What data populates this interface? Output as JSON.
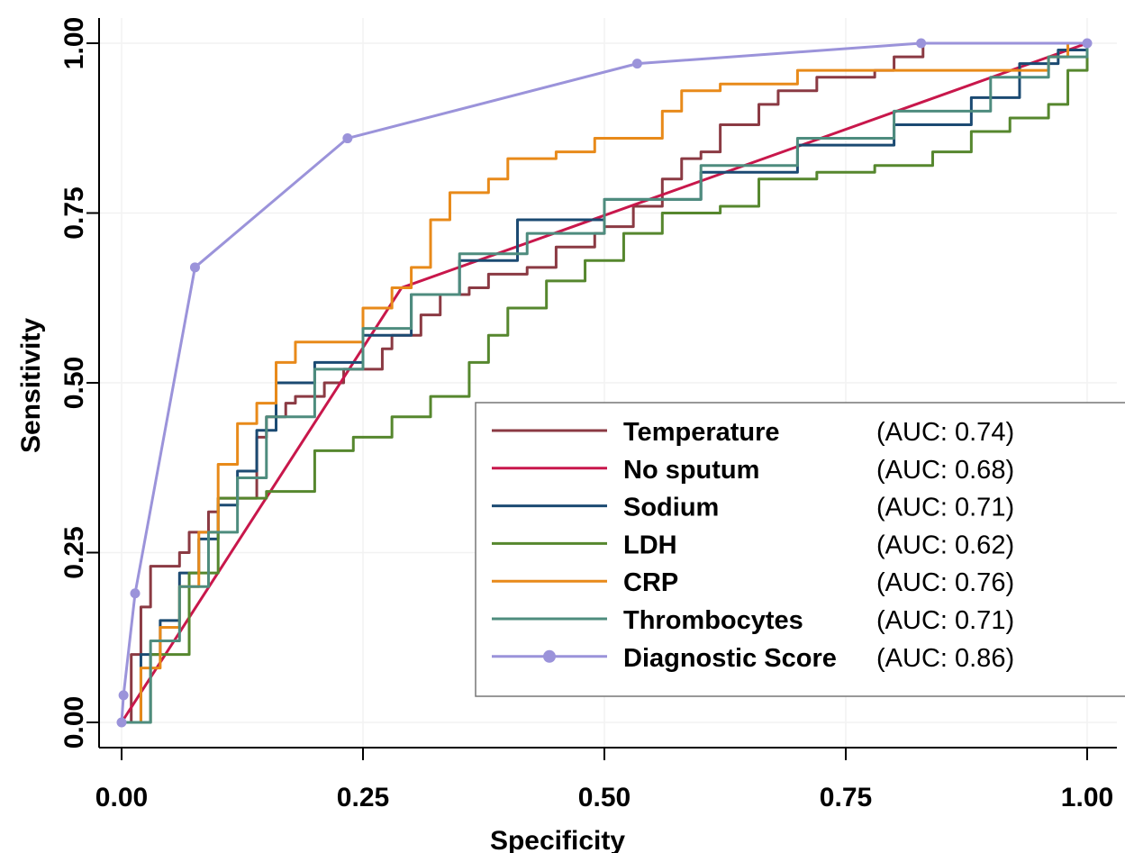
{
  "chart_data": {
    "type": "line",
    "xlabel": "Specificity",
    "ylabel": "Sensitivity",
    "xlim": [
      0,
      1
    ],
    "ylim": [
      0,
      1
    ],
    "x_ticks": [
      "0.00",
      "0.25",
      "0.50",
      "0.75",
      "1.00"
    ],
    "y_ticks": [
      "0.00",
      "0.25",
      "0.50",
      "0.75",
      "1.00"
    ],
    "x_tick_values": [
      0,
      0.25,
      0.5,
      0.75,
      1
    ],
    "y_tick_values": [
      0,
      0.25,
      0.5,
      0.75,
      1
    ],
    "grid": true,
    "legend_position": "bottom-right",
    "series": [
      {
        "name": "Temperature",
        "auc": "(AUC: 0.74)",
        "color": "#8b3a43",
        "markers": false,
        "points": [
          [
            0,
            0
          ],
          [
            0.01,
            0.1
          ],
          [
            0.02,
            0.17
          ],
          [
            0.03,
            0.23
          ],
          [
            0.05,
            0.23
          ],
          [
            0.06,
            0.25
          ],
          [
            0.07,
            0.28
          ],
          [
            0.09,
            0.31
          ],
          [
            0.1,
            0.33
          ],
          [
            0.12,
            0.33
          ],
          [
            0.14,
            0.42
          ],
          [
            0.15,
            0.45
          ],
          [
            0.17,
            0.47
          ],
          [
            0.18,
            0.48
          ],
          [
            0.2,
            0.48
          ],
          [
            0.21,
            0.5
          ],
          [
            0.23,
            0.52
          ],
          [
            0.25,
            0.52
          ],
          [
            0.27,
            0.55
          ],
          [
            0.28,
            0.57
          ],
          [
            0.31,
            0.6
          ],
          [
            0.33,
            0.63
          ],
          [
            0.36,
            0.64
          ],
          [
            0.38,
            0.66
          ],
          [
            0.4,
            0.66
          ],
          [
            0.42,
            0.67
          ],
          [
            0.45,
            0.7
          ],
          [
            0.49,
            0.72
          ],
          [
            0.5,
            0.73
          ],
          [
            0.53,
            0.76
          ],
          [
            0.56,
            0.8
          ],
          [
            0.58,
            0.83
          ],
          [
            0.6,
            0.84
          ],
          [
            0.62,
            0.88
          ],
          [
            0.64,
            0.88
          ],
          [
            0.66,
            0.91
          ],
          [
            0.68,
            0.93
          ],
          [
            0.72,
            0.95
          ],
          [
            0.75,
            0.95
          ],
          [
            0.78,
            0.96
          ],
          [
            0.8,
            0.98
          ],
          [
            0.83,
            0.98
          ],
          [
            0.83,
            1.0
          ]
        ]
      },
      {
        "name": "No sputum",
        "auc": "(AUC: 0.68)",
        "color": "#c8174b",
        "markers": false,
        "points": [
          [
            0,
            0
          ],
          [
            0.29,
            0.64
          ],
          [
            1.0,
            1.0
          ]
        ]
      },
      {
        "name": "Sodium",
        "auc": "(AUC: 0.71)",
        "color": "#1b4a72",
        "markers": false,
        "points": [
          [
            0,
            0
          ],
          [
            0.02,
            0.1
          ],
          [
            0.04,
            0.15
          ],
          [
            0.06,
            0.22
          ],
          [
            0.08,
            0.27
          ],
          [
            0.1,
            0.32
          ],
          [
            0.12,
            0.37
          ],
          [
            0.14,
            0.43
          ],
          [
            0.16,
            0.5
          ],
          [
            0.2,
            0.53
          ],
          [
            0.25,
            0.57
          ],
          [
            0.3,
            0.63
          ],
          [
            0.35,
            0.68
          ],
          [
            0.41,
            0.74
          ],
          [
            0.5,
            0.77
          ],
          [
            0.6,
            0.81
          ],
          [
            0.7,
            0.85
          ],
          [
            0.8,
            0.88
          ],
          [
            0.88,
            0.92
          ],
          [
            0.93,
            0.97
          ],
          [
            0.97,
            0.99
          ],
          [
            1.0,
            1.0
          ]
        ]
      },
      {
        "name": "LDH",
        "auc": "(AUC: 0.62)",
        "color": "#56872e",
        "markers": false,
        "points": [
          [
            0,
            0
          ],
          [
            0.03,
            0.1
          ],
          [
            0.07,
            0.22
          ],
          [
            0.1,
            0.33
          ],
          [
            0.15,
            0.34
          ],
          [
            0.2,
            0.4
          ],
          [
            0.24,
            0.42
          ],
          [
            0.28,
            0.45
          ],
          [
            0.32,
            0.48
          ],
          [
            0.36,
            0.53
          ],
          [
            0.38,
            0.57
          ],
          [
            0.4,
            0.61
          ],
          [
            0.44,
            0.65
          ],
          [
            0.48,
            0.68
          ],
          [
            0.52,
            0.72
          ],
          [
            0.56,
            0.75
          ],
          [
            0.62,
            0.76
          ],
          [
            0.66,
            0.8
          ],
          [
            0.72,
            0.81
          ],
          [
            0.78,
            0.82
          ],
          [
            0.84,
            0.84
          ],
          [
            0.88,
            0.87
          ],
          [
            0.92,
            0.89
          ],
          [
            0.96,
            0.91
          ],
          [
            0.98,
            0.96
          ],
          [
            1.0,
            1.0
          ]
        ]
      },
      {
        "name": "CRP",
        "auc": "(AUC: 0.76)",
        "color": "#e88a1a",
        "markers": false,
        "points": [
          [
            0,
            0
          ],
          [
            0.02,
            0.08
          ],
          [
            0.04,
            0.14
          ],
          [
            0.06,
            0.2
          ],
          [
            0.08,
            0.28
          ],
          [
            0.1,
            0.38
          ],
          [
            0.12,
            0.44
          ],
          [
            0.14,
            0.47
          ],
          [
            0.16,
            0.53
          ],
          [
            0.18,
            0.56
          ],
          [
            0.21,
            0.56
          ],
          [
            0.25,
            0.61
          ],
          [
            0.28,
            0.64
          ],
          [
            0.3,
            0.67
          ],
          [
            0.32,
            0.74
          ],
          [
            0.34,
            0.78
          ],
          [
            0.38,
            0.8
          ],
          [
            0.4,
            0.83
          ],
          [
            0.45,
            0.84
          ],
          [
            0.49,
            0.86
          ],
          [
            0.53,
            0.86
          ],
          [
            0.56,
            0.9
          ],
          [
            0.58,
            0.93
          ],
          [
            0.62,
            0.94
          ],
          [
            0.66,
            0.94
          ],
          [
            0.7,
            0.96
          ],
          [
            0.75,
            0.96
          ],
          [
            0.8,
            0.96
          ],
          [
            0.9,
            0.96
          ],
          [
            0.96,
            0.98
          ],
          [
            0.98,
            1.0
          ]
        ]
      },
      {
        "name": "Thrombocytes",
        "auc": "(AUC: 0.71)",
        "color": "#4e8c7e",
        "markers": false,
        "points": [
          [
            0,
            0
          ],
          [
            0.03,
            0.12
          ],
          [
            0.06,
            0.2
          ],
          [
            0.09,
            0.28
          ],
          [
            0.12,
            0.36
          ],
          [
            0.15,
            0.45
          ],
          [
            0.2,
            0.52
          ],
          [
            0.25,
            0.58
          ],
          [
            0.3,
            0.63
          ],
          [
            0.35,
            0.69
          ],
          [
            0.42,
            0.72
          ],
          [
            0.5,
            0.77
          ],
          [
            0.6,
            0.82
          ],
          [
            0.7,
            0.86
          ],
          [
            0.8,
            0.9
          ],
          [
            0.9,
            0.95
          ],
          [
            0.96,
            0.98
          ],
          [
            1.0,
            1.0
          ]
        ]
      },
      {
        "name": "Diagnostic Score",
        "auc": "(AUC: 0.86)",
        "color": "#9b93da",
        "markers": true,
        "points": [
          [
            0,
            0
          ],
          [
            0.002,
            0.04
          ],
          [
            0.014,
            0.19
          ],
          [
            0.076,
            0.67
          ],
          [
            0.234,
            0.86
          ],
          [
            0.534,
            0.97
          ],
          [
            0.828,
            1.0
          ],
          [
            1.0,
            1.0
          ]
        ]
      }
    ]
  }
}
